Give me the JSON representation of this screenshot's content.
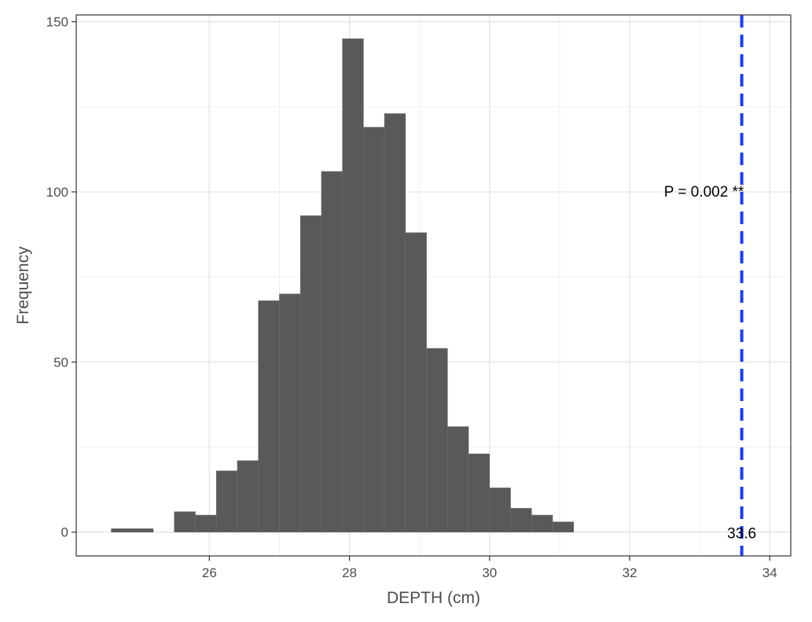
{
  "chart_data": {
    "type": "bar",
    "xlabel": "DEPTH (cm)",
    "ylabel": "Frequency",
    "xlim": [
      24.1,
      34.3
    ],
    "ylim": [
      -7,
      152
    ],
    "x_ticks": [
      26,
      28,
      30,
      32,
      34
    ],
    "y_ticks": [
      0,
      50,
      100,
      150
    ],
    "grid": true,
    "bin_width": 0.3,
    "bins": [
      {
        "x0": 24.6,
        "x1": 24.9,
        "count": 1
      },
      {
        "x0": 24.9,
        "x1": 25.2,
        "count": 1
      },
      {
        "x0": 25.2,
        "x1": 25.5,
        "count": 0
      },
      {
        "x0": 25.5,
        "x1": 25.8,
        "count": 6
      },
      {
        "x0": 25.8,
        "x1": 26.1,
        "count": 5
      },
      {
        "x0": 26.1,
        "x1": 26.4,
        "count": 18
      },
      {
        "x0": 26.4,
        "x1": 26.7,
        "count": 21
      },
      {
        "x0": 26.7,
        "x1": 27.0,
        "count": 68
      },
      {
        "x0": 27.0,
        "x1": 27.3,
        "count": 70
      },
      {
        "x0": 27.3,
        "x1": 27.6,
        "count": 93
      },
      {
        "x0": 27.6,
        "x1": 27.9,
        "count": 106
      },
      {
        "x0": 27.9,
        "x1": 28.2,
        "count": 145
      },
      {
        "x0": 28.2,
        "x1": 28.5,
        "count": 119
      },
      {
        "x0": 28.5,
        "x1": 28.8,
        "count": 123
      },
      {
        "x0": 28.8,
        "x1": 29.1,
        "count": 88
      },
      {
        "x0": 29.1,
        "x1": 29.4,
        "count": 54
      },
      {
        "x0": 29.4,
        "x1": 29.7,
        "count": 31
      },
      {
        "x0": 29.7,
        "x1": 30.0,
        "count": 23
      },
      {
        "x0": 30.0,
        "x1": 30.3,
        "count": 13
      },
      {
        "x0": 30.3,
        "x1": 30.6,
        "count": 7
      },
      {
        "x0": 30.6,
        "x1": 30.9,
        "count": 5
      },
      {
        "x0": 30.9,
        "x1": 31.2,
        "count": 3
      }
    ],
    "bar_color": "#595959",
    "observed_line": {
      "value": 33.6,
      "label": "33.6",
      "color": "#1a3cff",
      "style": "dashed"
    },
    "p_annotation": {
      "text": "P =  0.002 **",
      "x": 32.5,
      "y": 100
    }
  }
}
